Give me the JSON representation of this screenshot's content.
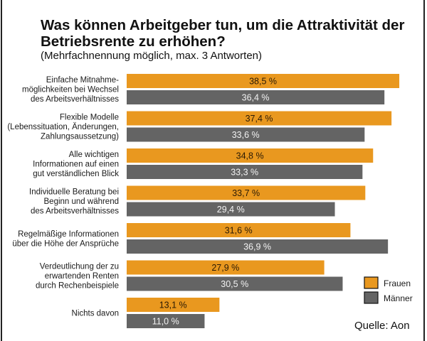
{
  "chart_data": {
    "type": "bar",
    "orientation": "horizontal",
    "title": "Was können Arbeitgeber tun, um die Attraktivität der Betriebsrente zu erhöhen?",
    "title_lines": [
      "Was können Arbeitgeber tun, um die Attraktivität der",
      "Betriebsrente zu erhöhen?"
    ],
    "subtitle": "(Mehrfachnennung möglich, max. 3 Antworten)",
    "xlabel": "",
    "ylabel": "",
    "xlim": [
      0,
      40
    ],
    "unit": "%",
    "grid": false,
    "legend_position": "bottom-right",
    "categories": [
      [
        "Einfache Mitnahme-",
        "möglichkeiten bei Wechsel",
        "des Arbeitsverhältnisses"
      ],
      [
        "Flexible Modelle",
        "(Lebenssituation, Änderungen,",
        "Zahlungsaussetzung)"
      ],
      [
        "Alle wichtigen",
        "Informationen auf einen",
        "gut verständlichen Blick"
      ],
      [
        "Individuelle Beratung bei",
        "Beginn und während",
        "des Arbeitsverhältnisses"
      ],
      [
        "Regelmäßige Informationen",
        "über die Höhe der Ansprüche"
      ],
      [
        "Verdeutlichung der zu",
        "erwartenden Renten",
        "durch Rechenbeispiele"
      ],
      [
        "Nichts davon"
      ]
    ],
    "series": [
      {
        "name": "Frauen",
        "color": "#E9981F",
        "values": [
          38.5,
          37.4,
          34.8,
          33.7,
          31.6,
          27.9,
          13.1
        ],
        "labels": [
          "38,5 %",
          "37,4 %",
          "34,8 %",
          "33,7 %",
          "31,6 %",
          "27,9 %",
          "13,1 %"
        ]
      },
      {
        "name": "Männer",
        "color": "#646464",
        "values": [
          36.4,
          33.6,
          33.3,
          29.4,
          36.9,
          30.5,
          11.0
        ],
        "labels": [
          "36,4 %",
          "33,6 %",
          "33,3 %",
          "29,4 %",
          "36,9 %",
          "30,5 %",
          "11,0 %"
        ]
      }
    ],
    "source": "Quelle: Aon"
  }
}
